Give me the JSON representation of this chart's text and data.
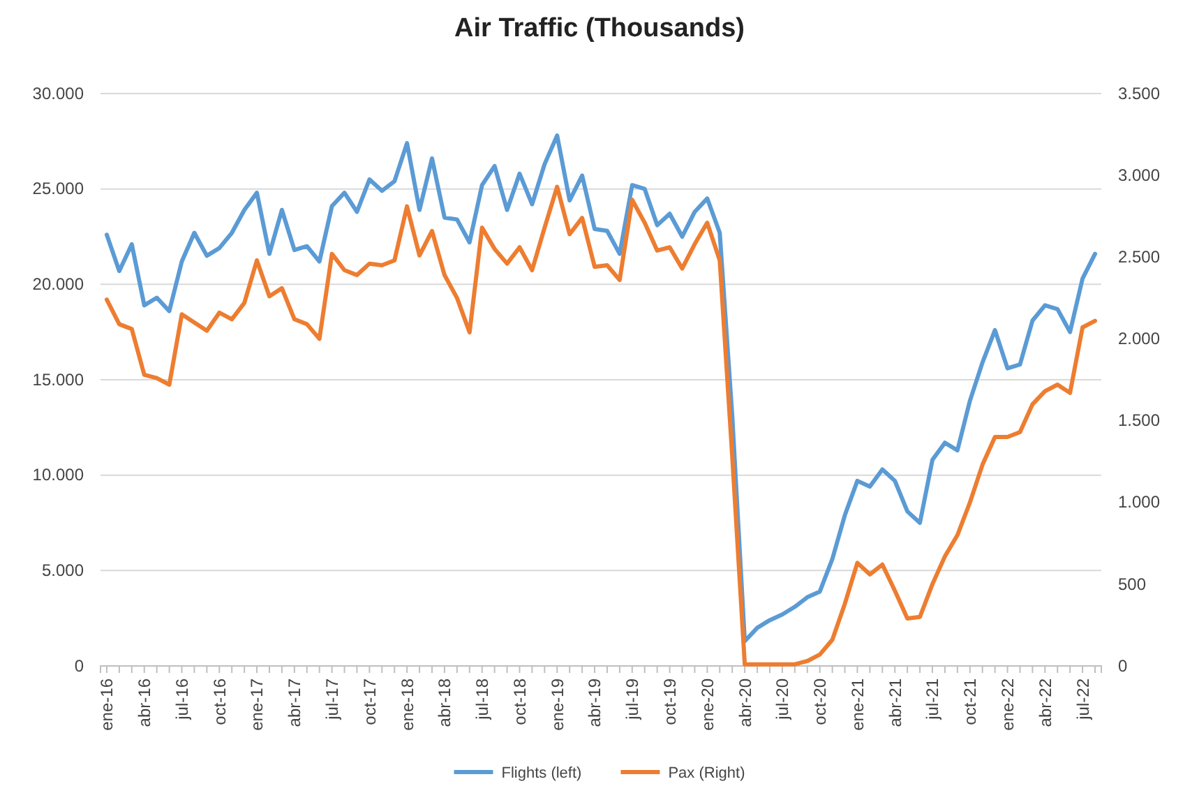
{
  "chart_data": {
    "type": "line",
    "title": "Air Traffic (Thousands)",
    "categories": [
      "ene-16",
      null,
      null,
      "abr-16",
      null,
      null,
      "jul-16",
      null,
      null,
      "oct-16",
      null,
      null,
      "ene-17",
      null,
      null,
      "abr-17",
      null,
      null,
      "jul-17",
      null,
      null,
      "oct-17",
      null,
      null,
      "ene-18",
      null,
      null,
      "abr-18",
      null,
      null,
      "jul-18",
      null,
      null,
      "oct-18",
      null,
      null,
      "ene-19",
      null,
      null,
      "abr-19",
      null,
      null,
      "jul-19",
      null,
      null,
      "oct-19",
      null,
      null,
      "ene-20",
      null,
      null,
      "abr-20",
      null,
      null,
      "jul-20",
      null,
      null,
      "oct-20",
      null,
      null,
      "ene-21",
      null,
      null,
      "abr-21",
      null,
      null,
      "jul-21",
      null,
      null,
      "oct-21",
      null,
      null,
      "ene-22",
      null,
      null,
      "abr-22",
      null,
      null,
      "jul-22",
      null
    ],
    "series": [
      {
        "name": "Flights (left)",
        "color": "#5b9bd5",
        "values": [
          22600,
          20700,
          22100,
          18900,
          19300,
          18600,
          21200,
          22700,
          21500,
          21900,
          22700,
          23900,
          24800,
          21600,
          23900,
          21800,
          22000,
          21200,
          24100,
          24800,
          23800,
          25500,
          24900,
          25400,
          27400,
          23900,
          26600,
          23500,
          23400,
          22200,
          25200,
          26200,
          23900,
          25800,
          24200,
          26300,
          27800,
          24400,
          25700,
          22900,
          22800,
          21600,
          25200,
          25000,
          23100,
          23700,
          22500,
          23800,
          24500,
          22700,
          13100,
          1300,
          2000,
          2400,
          2700,
          3100,
          3600,
          3900,
          5600,
          7900,
          9700,
          9400,
          10300,
          9700,
          8100,
          7500,
          10800,
          11700,
          11300,
          13900,
          15900,
          17600,
          15600,
          15800,
          18100,
          18900,
          18700,
          17500,
          20300,
          21600
        ]
      },
      {
        "name": "Pax (Right)",
        "color": "#ed7d31",
        "axis": "y2",
        "values": [
          2240,
          2090,
          2060,
          1780,
          1760,
          1720,
          2150,
          2100,
          2050,
          2160,
          2120,
          2220,
          2480,
          2260,
          2310,
          2120,
          2090,
          2000,
          2520,
          2420,
          2390,
          2460,
          2450,
          2480,
          2810,
          2510,
          2660,
          2390,
          2250,
          2040,
          2680,
          2550,
          2460,
          2560,
          2420,
          2680,
          2930,
          2640,
          2740,
          2440,
          2450,
          2360,
          2850,
          2710,
          2540,
          2560,
          2430,
          2580,
          2710,
          2480,
          1280,
          10,
          10,
          10,
          10,
          10,
          30,
          70,
          160,
          380,
          630,
          560,
          620,
          460,
          290,
          300,
          500,
          670,
          800,
          1000,
          1230,
          1400,
          1400,
          1430,
          1600,
          1680,
          1720,
          1670,
          2070,
          2110
        ]
      }
    ],
    "ylim": [
      0,
      30000
    ],
    "yticks": [
      {
        "value": 0,
        "label": "0"
      },
      {
        "value": 5000,
        "label": "5.000"
      },
      {
        "value": 10000,
        "label": "10.000"
      },
      {
        "value": 15000,
        "label": "15.000"
      },
      {
        "value": 20000,
        "label": "20.000"
      },
      {
        "value": 25000,
        "label": "25.000"
      },
      {
        "value": 30000,
        "label": "30.000"
      }
    ],
    "y2lim": [
      0,
      3500
    ],
    "y2ticks": [
      {
        "value": 0,
        "label": "0"
      },
      {
        "value": 500,
        "label": "500"
      },
      {
        "value": 1000,
        "label": "1.000"
      },
      {
        "value": 1500,
        "label": "1.500"
      },
      {
        "value": 2000,
        "label": "2.000"
      },
      {
        "value": 2500,
        "label": "2.500"
      },
      {
        "value": 3000,
        "label": "3.000"
      },
      {
        "value": 3500,
        "label": "3.500"
      }
    ],
    "grid": "y",
    "legend": "bottom",
    "marker": "none",
    "line_style": "solid"
  }
}
